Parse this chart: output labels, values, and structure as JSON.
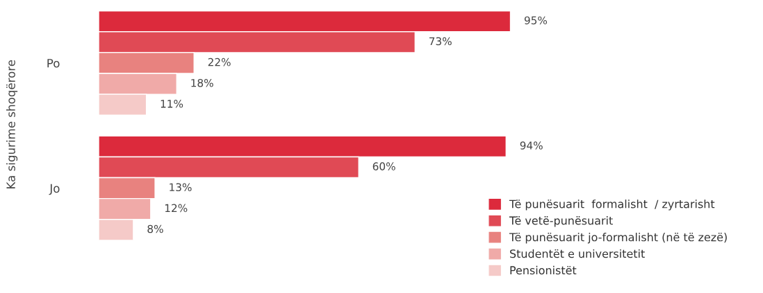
{
  "chart_data": {
    "type": "bar",
    "orientation": "horizontal",
    "ylabel": "Ka sigurime shoqërore",
    "categories": [
      "Po",
      "Jo"
    ],
    "series": [
      {
        "name": "Të punësuarit  formalisht  / zyrtarisht",
        "color": "#dc2a3c",
        "values": [
          95,
          94
        ],
        "value_labels": [
          "95%",
          "94%"
        ]
      },
      {
        "name": "Të vetë-punësuarit",
        "color": "#e04a55",
        "values": [
          73,
          60
        ],
        "value_labels": [
          "73%",
          "60%"
        ]
      },
      {
        "name": "Të punësuarit jo-formalisht (në të zezë)",
        "color": "#e8827f",
        "values": [
          22,
          13
        ],
        "value_labels": [
          "22%",
          "13%"
        ]
      },
      {
        "name": "Studentët e universitetit",
        "color": "#f0aaa8",
        "values": [
          18,
          12
        ],
        "value_labels": [
          "18%",
          "12%"
        ]
      },
      {
        "name": "Pensionistët",
        "color": "#f5cac8",
        "values": [
          11,
          8
        ],
        "value_labels": [
          "11%",
          "8%"
        ]
      }
    ],
    "legend": "bottom right",
    "grid": false,
    "tick_labels": "y"
  }
}
